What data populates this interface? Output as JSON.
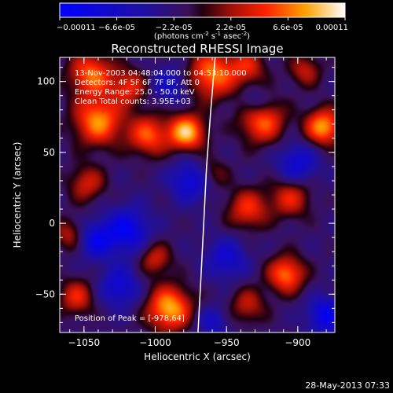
{
  "chart_data": {
    "type": "heatmap",
    "title": "Reconstructed RHESSI Image",
    "colorbar": {
      "ticks": [
        "-0.00011",
        "-6.6e-05",
        "-2.2e-05",
        "2.2e-05",
        "6.6e-05",
        "0.00011"
      ],
      "unit_prefix": "(photons cm",
      "unit_exp1": "-2",
      "unit_mid": " s",
      "unit_exp2": "-1",
      "unit_mid2": " asec",
      "unit_exp3": "-2",
      "unit_suffix": ")",
      "min": -0.00011,
      "max": 0.00011
    },
    "info": [
      "13-Nov-2003 04:48:04.000 to 04:53:10.000",
      "Detectors: 4F 5F 6F 7F 8F, Att 0",
      "Energy Range: 25.0 - 50.0 keV",
      "Clean     Total counts: 3.95E+03"
    ],
    "peak_label": "Position of Peak = [-978,64]",
    "xlabel": "Heliocentric X (arcsec)",
    "ylabel": "Heliocentric Y (arcsec)",
    "xlim": [
      -1067,
      -874
    ],
    "ylim": [
      -77,
      117
    ],
    "xticks": [
      {
        "v": -1050,
        "label": "−1050"
      },
      {
        "v": -1000,
        "label": "−1000"
      },
      {
        "v": -950,
        "label": "−950"
      },
      {
        "v": -900,
        "label": "−900"
      }
    ],
    "yticks": [
      {
        "v": 100,
        "label": "100"
      },
      {
        "v": 50,
        "label": "50"
      },
      {
        "v": 0,
        "label": "0"
      },
      {
        "v": -50,
        "label": "−50"
      }
    ],
    "blobs": [
      {
        "x": -1045,
        "y": 105,
        "v": 0.75,
        "s": 11
      },
      {
        "x": -1018,
        "y": 96,
        "v": 0.55,
        "s": 9
      },
      {
        "x": -1040,
        "y": 72,
        "v": 0.85,
        "s": 12
      },
      {
        "x": -1005,
        "y": 62,
        "v": 0.7,
        "s": 10
      },
      {
        "x": -978,
        "y": 64,
        "v": 1.0,
        "s": 9
      },
      {
        "x": -1048,
        "y": 28,
        "v": 0.5,
        "s": 9
      },
      {
        "x": -1060,
        "y": -8,
        "v": 0.45,
        "s": 8
      },
      {
        "x": -1055,
        "y": -52,
        "v": 0.55,
        "s": 9
      },
      {
        "x": -990,
        "y": -60,
        "v": 0.95,
        "s": 11
      },
      {
        "x": -1000,
        "y": -25,
        "v": 0.5,
        "s": 8
      },
      {
        "x": -935,
        "y": 10,
        "v": 0.6,
        "s": 10
      },
      {
        "x": -905,
        "y": 18,
        "v": 0.55,
        "s": 10
      },
      {
        "x": -925,
        "y": 72,
        "v": 0.75,
        "s": 11
      },
      {
        "x": -882,
        "y": 68,
        "v": 0.9,
        "s": 9
      },
      {
        "x": -960,
        "y": 105,
        "v": 0.8,
        "s": 12
      },
      {
        "x": -935,
        "y": 110,
        "v": 0.5,
        "s": 9
      },
      {
        "x": -895,
        "y": 108,
        "v": 0.45,
        "s": 8
      },
      {
        "x": -908,
        "y": -36,
        "v": 0.8,
        "s": 9
      },
      {
        "x": -935,
        "y": -58,
        "v": 0.45,
        "s": 9
      },
      {
        "x": -960,
        "y": 35,
        "v": 0.35,
        "s": 8
      },
      {
        "x": -1020,
        "y": -5,
        "v": -0.7,
        "s": 11
      },
      {
        "x": -1042,
        "y": -12,
        "v": -0.6,
        "s": 9
      },
      {
        "x": -1025,
        "y": -45,
        "v": -0.55,
        "s": 10
      },
      {
        "x": -975,
        "y": 30,
        "v": -0.6,
        "s": 10
      },
      {
        "x": -990,
        "y": 98,
        "v": -0.45,
        "s": 9
      },
      {
        "x": -950,
        "y": -25,
        "v": -0.5,
        "s": 10
      },
      {
        "x": -900,
        "y": 42,
        "v": -0.55,
        "s": 10
      },
      {
        "x": -880,
        "y": -65,
        "v": -0.7,
        "s": 9
      },
      {
        "x": -930,
        "y": 85,
        "v": -0.35,
        "s": 7
      },
      {
        "x": -960,
        "y": -70,
        "v": -0.4,
        "s": 8
      }
    ],
    "limb_points": [
      [
        -958,
        117
      ],
      [
        -961,
        80
      ],
      [
        -964,
        40
      ],
      [
        -966,
        0
      ],
      [
        -968,
        -40
      ],
      [
        -970,
        -77
      ]
    ],
    "colormap": [
      [
        0.0,
        "#0000ff"
      ],
      [
        0.3,
        "#2010a0"
      ],
      [
        0.45,
        "#3a1058"
      ],
      [
        0.5,
        "#200010"
      ],
      [
        0.6,
        "#a01008"
      ],
      [
        0.72,
        "#ff2000"
      ],
      [
        0.86,
        "#ffa000"
      ],
      [
        1.0,
        "#ffffff"
      ]
    ]
  },
  "footer_date": "28-May-2013 07:33"
}
